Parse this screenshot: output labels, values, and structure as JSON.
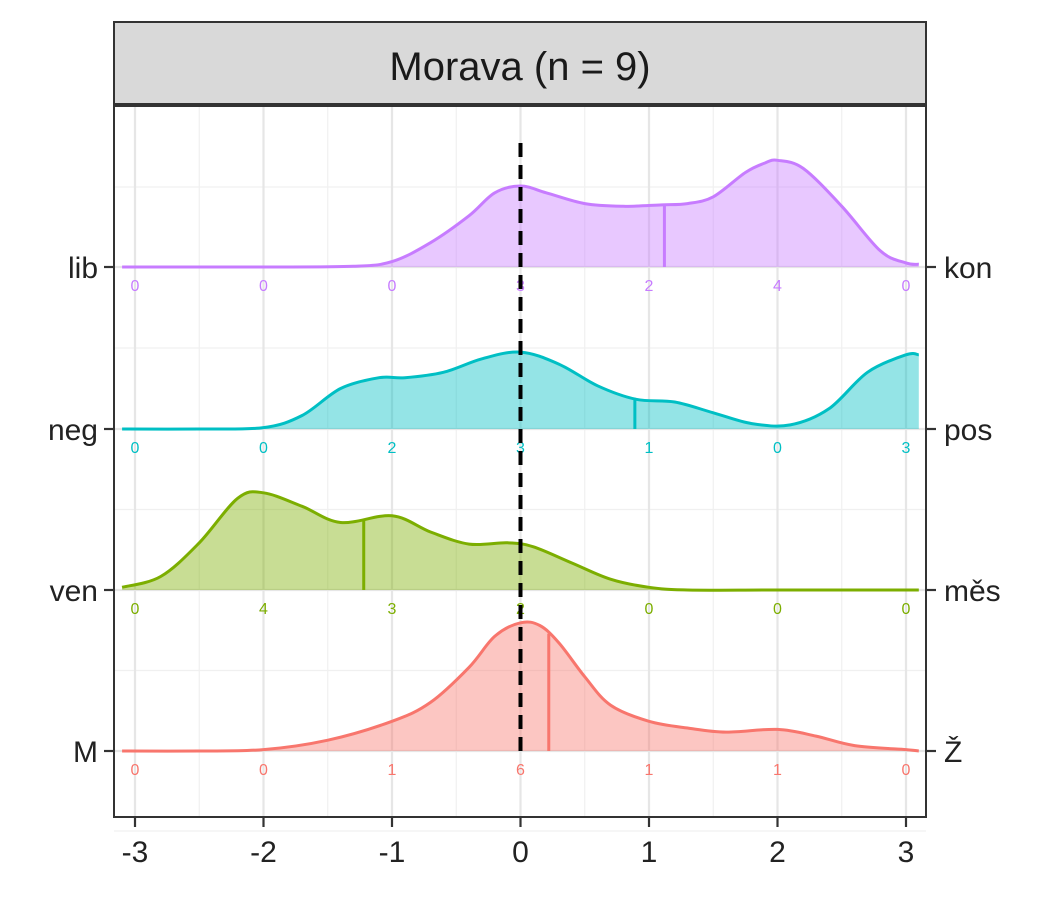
{
  "chart_data": {
    "type": "ridgeline",
    "title": "Morava (n = 9)",
    "xlim": [
      -3.1,
      3.1
    ],
    "x_ticks": [
      "-3",
      "-2",
      "-1",
      "0",
      "1",
      "2",
      "3"
    ],
    "x_tick_values": [
      -3,
      -2,
      -1,
      0,
      1,
      2,
      3
    ],
    "reference_line": 0,
    "grid": true,
    "count_positions": [
      -3,
      -2,
      -1,
      0,
      1,
      2,
      3
    ],
    "rows": [
      {
        "left_label": "M",
        "right_label": "Ž",
        "color": "#F8766D",
        "mean": 0.22,
        "counts": [
          "0",
          "0",
          "1",
          "6",
          "1",
          "1",
          "0"
        ],
        "density": [
          [
            -3.1,
            0
          ],
          [
            -2.5,
            0
          ],
          [
            -2,
            0.01
          ],
          [
            -1.5,
            0.08
          ],
          [
            -1,
            0.22
          ],
          [
            -0.7,
            0.36
          ],
          [
            -0.4,
            0.62
          ],
          [
            -0.2,
            0.85
          ],
          [
            0,
            0.95
          ],
          [
            0.15,
            0.93
          ],
          [
            0.3,
            0.8
          ],
          [
            0.5,
            0.55
          ],
          [
            0.7,
            0.34
          ],
          [
            1,
            0.22
          ],
          [
            1.3,
            0.17
          ],
          [
            1.6,
            0.14
          ],
          [
            2,
            0.16
          ],
          [
            2.3,
            0.11
          ],
          [
            2.6,
            0.04
          ],
          [
            3,
            0.01
          ],
          [
            3.1,
            0
          ]
        ]
      },
      {
        "left_label": "ven",
        "right_label": "měs",
        "color": "#7CAE00",
        "mean": -1.22,
        "counts": [
          "0",
          "4",
          "3",
          "2",
          "0",
          "0",
          "0"
        ],
        "density": [
          [
            -3.1,
            0.02
          ],
          [
            -2.8,
            0.1
          ],
          [
            -2.5,
            0.35
          ],
          [
            -2.2,
            0.68
          ],
          [
            -2,
            0.72
          ],
          [
            -1.7,
            0.62
          ],
          [
            -1.4,
            0.5
          ],
          [
            -1,
            0.55
          ],
          [
            -0.7,
            0.43
          ],
          [
            -0.4,
            0.34
          ],
          [
            -0.1,
            0.35
          ],
          [
            0.1,
            0.32
          ],
          [
            0.4,
            0.2
          ],
          [
            0.7,
            0.08
          ],
          [
            1,
            0.02
          ],
          [
            1.3,
            0
          ],
          [
            2,
            0
          ],
          [
            3.1,
            0
          ]
        ]
      },
      {
        "left_label": "neg",
        "right_label": "pos",
        "color": "#00BFC4",
        "mean": 0.89,
        "counts": [
          "0",
          "0",
          "2",
          "3",
          "1",
          "0",
          "3"
        ],
        "density": [
          [
            -3.1,
            0
          ],
          [
            -2.5,
            0
          ],
          [
            -2,
            0.01
          ],
          [
            -1.7,
            0.1
          ],
          [
            -1.4,
            0.3
          ],
          [
            -1.1,
            0.38
          ],
          [
            -0.9,
            0.38
          ],
          [
            -0.6,
            0.42
          ],
          [
            -0.3,
            0.52
          ],
          [
            0,
            0.57
          ],
          [
            0.3,
            0.48
          ],
          [
            0.6,
            0.32
          ],
          [
            0.9,
            0.22
          ],
          [
            1.2,
            0.2
          ],
          [
            1.5,
            0.12
          ],
          [
            1.8,
            0.04
          ],
          [
            2.1,
            0.03
          ],
          [
            2.4,
            0.15
          ],
          [
            2.7,
            0.42
          ],
          [
            3,
            0.55
          ],
          [
            3.1,
            0.55
          ]
        ]
      },
      {
        "left_label": "lib",
        "right_label": "kon",
        "color": "#C77CFF",
        "mean": 1.12,
        "counts": [
          "0",
          "0",
          "0",
          "3",
          "2",
          "4",
          "0"
        ],
        "density": [
          [
            -3.1,
            0
          ],
          [
            -2,
            0
          ],
          [
            -1.3,
            0.005
          ],
          [
            -1,
            0.04
          ],
          [
            -0.7,
            0.18
          ],
          [
            -0.4,
            0.38
          ],
          [
            -0.2,
            0.55
          ],
          [
            0,
            0.6
          ],
          [
            0.2,
            0.55
          ],
          [
            0.5,
            0.47
          ],
          [
            0.8,
            0.45
          ],
          [
            1.1,
            0.46
          ],
          [
            1.3,
            0.47
          ],
          [
            1.5,
            0.52
          ],
          [
            1.75,
            0.7
          ],
          [
            1.9,
            0.77
          ],
          [
            2,
            0.79
          ],
          [
            2.2,
            0.73
          ],
          [
            2.5,
            0.45
          ],
          [
            2.8,
            0.12
          ],
          [
            3,
            0.03
          ],
          [
            3.1,
            0.02
          ]
        ]
      }
    ]
  }
}
